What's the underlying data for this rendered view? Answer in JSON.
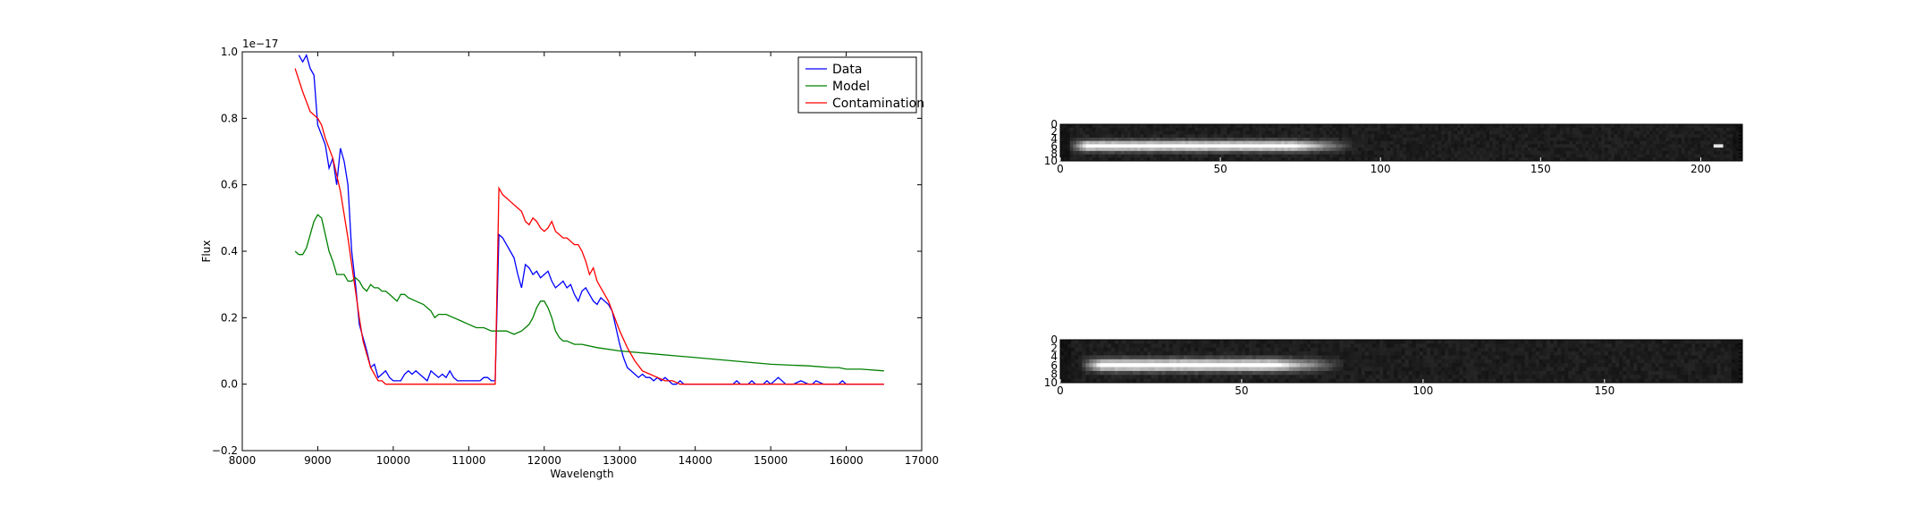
{
  "chart_data": [
    {
      "type": "line",
      "title": "",
      "xlabel": "Wavelength",
      "ylabel": "Flux",
      "xlim": [
        8000,
        17000
      ],
      "ylim": [
        -0.2,
        1.0
      ],
      "y_offset_label": "1e−17",
      "xticks": [
        8000,
        9000,
        10000,
        11000,
        12000,
        13000,
        14000,
        15000,
        16000,
        17000
      ],
      "xtick_labels": [
        "8000",
        "9000",
        "10000",
        "11000",
        "12000",
        "13000",
        "14000",
        "15000",
        "16000",
        "17000"
      ],
      "yticks": [
        -0.2,
        0.0,
        0.2,
        0.4,
        0.6,
        0.8,
        1.0
      ],
      "ytick_labels": [
        "−0.2",
        "0.0",
        "0.2",
        "0.4",
        "0.6",
        "0.8",
        "1.0"
      ],
      "grid": false,
      "legend_position": "top-right",
      "series": [
        {
          "name": "Data",
          "color": "#0000ff",
          "x": [
            8750,
            8800,
            8850,
            8900,
            8950,
            9000,
            9050,
            9100,
            9150,
            9200,
            9250,
            9300,
            9350,
            9400,
            9450,
            9500,
            9550,
            9600,
            9650,
            9700,
            9750,
            9800,
            9850,
            9900,
            9950,
            10000,
            10050,
            10100,
            10150,
            10200,
            10250,
            10300,
            10350,
            10400,
            10450,
            10500,
            10550,
            10600,
            10650,
            10700,
            10750,
            10800,
            10850,
            10900,
            10950,
            11000,
            11050,
            11100,
            11150,
            11200,
            11250,
            11300,
            11350,
            11400,
            11450,
            11500,
            11550,
            11600,
            11650,
            11700,
            11750,
            11800,
            11850,
            11900,
            11950,
            12000,
            12050,
            12100,
            12150,
            12200,
            12250,
            12300,
            12350,
            12400,
            12450,
            12500,
            12550,
            12600,
            12650,
            12700,
            12750,
            12800,
            12850,
            12900,
            12950,
            13000,
            13050,
            13100,
            13150,
            13200,
            13250,
            13300,
            13350,
            13400,
            13450,
            13500,
            13550,
            13600,
            13650,
            13700,
            13750,
            13800,
            13850,
            13900,
            14000,
            14100,
            14200,
            14300,
            14400,
            14500,
            14550,
            14600,
            14700,
            14750,
            14800,
            14900,
            14950,
            15000,
            15100,
            15200,
            15300,
            15400,
            15500,
            15550,
            15600,
            15700,
            15800,
            15900,
            15950,
            16000,
            16100,
            16200,
            16300,
            16400,
            16500
          ],
          "y": [
            0.99,
            0.97,
            0.99,
            0.95,
            0.93,
            0.78,
            0.75,
            0.72,
            0.65,
            0.68,
            0.6,
            0.71,
            0.67,
            0.6,
            0.4,
            0.3,
            0.18,
            0.14,
            0.1,
            0.05,
            0.06,
            0.02,
            0.03,
            0.04,
            0.02,
            0.01,
            0.01,
            0.01,
            0.03,
            0.04,
            0.03,
            0.04,
            0.03,
            0.02,
            0.01,
            0.04,
            0.03,
            0.02,
            0.03,
            0.02,
            0.04,
            0.02,
            0.01,
            0.01,
            0.01,
            0.01,
            0.01,
            0.01,
            0.01,
            0.02,
            0.02,
            0.01,
            0.01,
            0.45,
            0.44,
            0.42,
            0.4,
            0.38,
            0.33,
            0.29,
            0.36,
            0.35,
            0.33,
            0.34,
            0.32,
            0.33,
            0.34,
            0.31,
            0.29,
            0.3,
            0.31,
            0.29,
            0.3,
            0.27,
            0.25,
            0.28,
            0.29,
            0.27,
            0.25,
            0.24,
            0.26,
            0.25,
            0.24,
            0.22,
            0.17,
            0.12,
            0.08,
            0.05,
            0.04,
            0.03,
            0.02,
            0.03,
            0.02,
            0.02,
            0.01,
            0.02,
            0.01,
            0.02,
            0.01,
            0.0,
            0.0,
            0.01,
            0.0,
            0.0,
            0.0,
            0.0,
            0.0,
            0.0,
            0.0,
            0.0,
            0.01,
            0.0,
            0.0,
            0.01,
            0.0,
            0.0,
            0.01,
            0.0,
            0.02,
            0.0,
            0.0,
            0.01,
            0.0,
            0.0,
            0.01,
            0.0,
            0.0,
            0.0,
            0.01,
            0.0,
            0.0,
            0.0,
            0.0,
            0.0,
            0.0
          ]
        },
        {
          "name": "Model",
          "color": "#008000",
          "x": [
            8700,
            8750,
            8800,
            8850,
            8900,
            8950,
            9000,
            9050,
            9100,
            9150,
            9200,
            9250,
            9300,
            9350,
            9400,
            9450,
            9500,
            9550,
            9600,
            9650,
            9700,
            9750,
            9800,
            9850,
            9900,
            9950,
            10000,
            10050,
            10100,
            10150,
            10200,
            10300,
            10400,
            10500,
            10550,
            10600,
            10650,
            10700,
            10800,
            10900,
            11000,
            11100,
            11200,
            11300,
            11400,
            11500,
            11600,
            11700,
            11800,
            11850,
            11900,
            11950,
            12000,
            12050,
            12100,
            12150,
            12200,
            12250,
            12300,
            12400,
            12500,
            12700,
            13000,
            13500,
            14000,
            14500,
            15000,
            15500,
            15800,
            15900,
            16000,
            16200,
            16500
          ],
          "y": [
            0.4,
            0.39,
            0.39,
            0.41,
            0.45,
            0.49,
            0.51,
            0.5,
            0.45,
            0.4,
            0.37,
            0.33,
            0.33,
            0.33,
            0.31,
            0.31,
            0.32,
            0.31,
            0.29,
            0.28,
            0.3,
            0.29,
            0.29,
            0.28,
            0.28,
            0.27,
            0.26,
            0.25,
            0.27,
            0.27,
            0.26,
            0.25,
            0.24,
            0.22,
            0.2,
            0.21,
            0.21,
            0.21,
            0.2,
            0.19,
            0.18,
            0.17,
            0.17,
            0.16,
            0.16,
            0.16,
            0.15,
            0.16,
            0.18,
            0.2,
            0.23,
            0.25,
            0.25,
            0.23,
            0.2,
            0.16,
            0.14,
            0.13,
            0.13,
            0.12,
            0.12,
            0.11,
            0.1,
            0.09,
            0.08,
            0.07,
            0.06,
            0.055,
            0.05,
            0.05,
            0.045,
            0.045,
            0.04
          ]
        },
        {
          "name": "Contamination",
          "color": "#ff0000",
          "x": [
            8700,
            8800,
            8900,
            9000,
            9050,
            9100,
            9200,
            9300,
            9400,
            9450,
            9500,
            9550,
            9600,
            9650,
            9700,
            9750,
            9800,
            9850,
            9900,
            10000,
            10500,
            11000,
            11350,
            11400,
            11450,
            11500,
            11550,
            11600,
            11650,
            11700,
            11750,
            11800,
            11850,
            11900,
            11950,
            12000,
            12050,
            12100,
            12150,
            12200,
            12250,
            12300,
            12350,
            12400,
            12450,
            12500,
            12550,
            12600,
            12650,
            12700,
            12750,
            12800,
            12850,
            12900,
            12950,
            13000,
            13100,
            13200,
            13300,
            13400,
            13500,
            13600,
            13700,
            13800,
            13900,
            14000,
            14500,
            15000,
            16000,
            16500
          ],
          "y": [
            0.95,
            0.88,
            0.82,
            0.8,
            0.78,
            0.74,
            0.68,
            0.58,
            0.44,
            0.36,
            0.28,
            0.2,
            0.13,
            0.09,
            0.05,
            0.03,
            0.01,
            0.01,
            0.0,
            0.0,
            0.0,
            0.0,
            0.0,
            0.59,
            0.57,
            0.56,
            0.55,
            0.54,
            0.53,
            0.52,
            0.49,
            0.48,
            0.5,
            0.49,
            0.47,
            0.46,
            0.47,
            0.49,
            0.46,
            0.45,
            0.44,
            0.44,
            0.43,
            0.42,
            0.42,
            0.4,
            0.37,
            0.33,
            0.35,
            0.31,
            0.29,
            0.27,
            0.25,
            0.22,
            0.19,
            0.16,
            0.11,
            0.07,
            0.04,
            0.03,
            0.02,
            0.01,
            0.01,
            0.0,
            0.0,
            0.0,
            0.0,
            0.0,
            0.0,
            0.0
          ]
        }
      ]
    },
    {
      "type": "heatmap",
      "colormap": "gray",
      "xlim": [
        0,
        213
      ],
      "ylim": [
        10,
        0
      ],
      "xticks": [
        0,
        50,
        100,
        150,
        200
      ],
      "xtick_labels": [
        "0",
        "50",
        "100",
        "150",
        "200"
      ],
      "yticks": [
        0,
        2,
        4,
        6,
        8,
        10
      ],
      "ytick_labels": [
        "0",
        "2",
        "4",
        "6",
        "8",
        "10"
      ],
      "trace_row": 6,
      "trace_start": 2,
      "trace_end": 92,
      "trace_peak": 0.95,
      "hot_spot": {
        "x": 205,
        "y": 6,
        "value": 0.9
      }
    },
    {
      "type": "heatmap",
      "colormap": "gray",
      "xlim": [
        0,
        188
      ],
      "ylim": [
        10,
        0
      ],
      "xticks": [
        0,
        50,
        100,
        150
      ],
      "xtick_labels": [
        "0",
        "50",
        "100",
        "150"
      ],
      "yticks": [
        0,
        2,
        4,
        6,
        8,
        10
      ],
      "ytick_labels": [
        "0",
        "2",
        "4",
        "6",
        "8",
        "10"
      ],
      "trace_row": 6,
      "trace_start": 5,
      "trace_end": 78,
      "trace_peak": 0.95,
      "hot_spot": null
    }
  ]
}
